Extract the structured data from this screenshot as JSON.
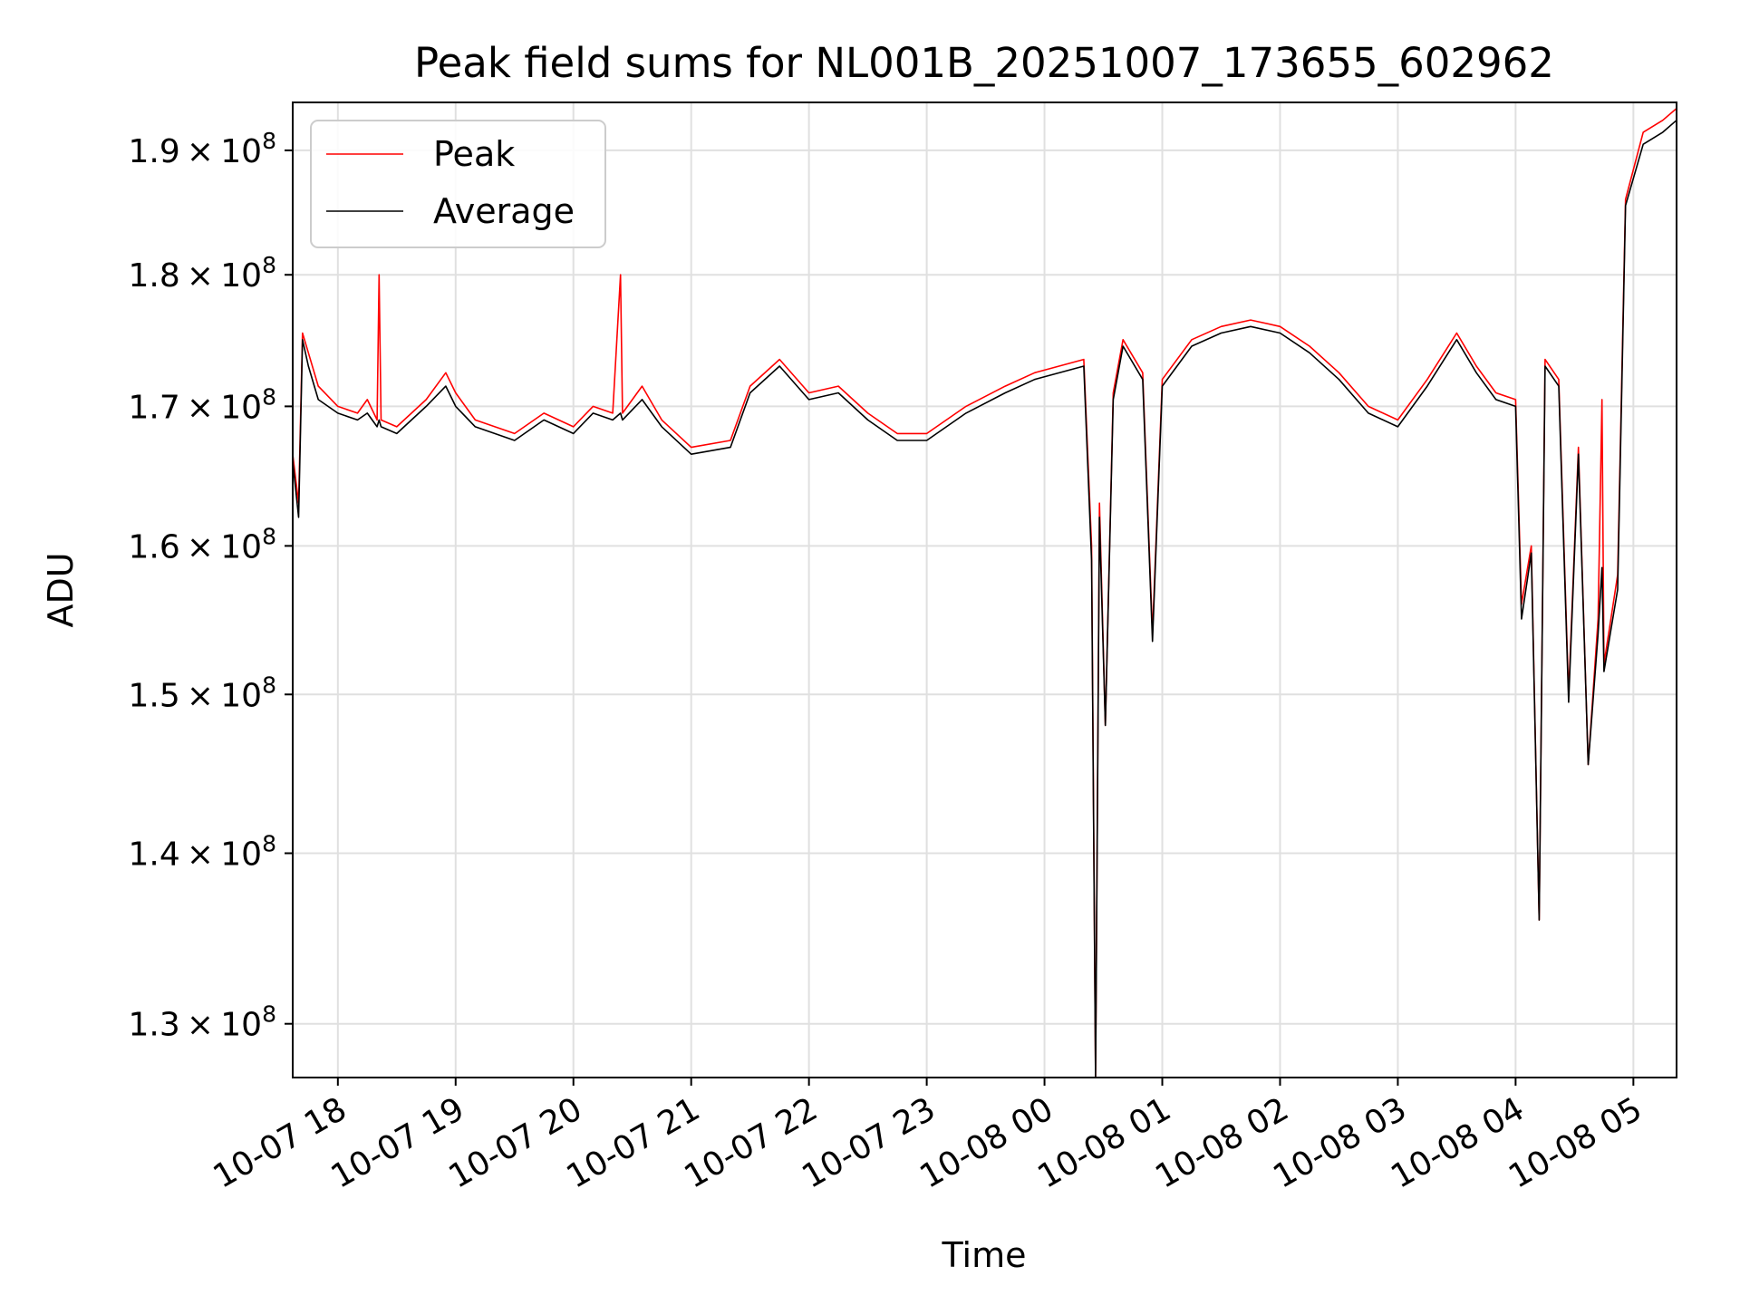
{
  "chart_data": {
    "type": "line",
    "title": "Peak field sums for NL001B_20251007_173655_602962",
    "xlabel": "Time",
    "ylabel": "ADU",
    "y_scale": "log",
    "grid": true,
    "legend_position": "upper-left",
    "xlim": [
      "2025-10-07 17:37",
      "2025-10-08 05:22"
    ],
    "ylim": [
      127000000,
      194000000
    ],
    "x_ticks": [
      {
        "t": "2025-10-07 18:00",
        "label": "10-07 18"
      },
      {
        "t": "2025-10-07 19:00",
        "label": "10-07 19"
      },
      {
        "t": "2025-10-07 20:00",
        "label": "10-07 20"
      },
      {
        "t": "2025-10-07 21:00",
        "label": "10-07 21"
      },
      {
        "t": "2025-10-07 22:00",
        "label": "10-07 22"
      },
      {
        "t": "2025-10-07 23:00",
        "label": "10-07 23"
      },
      {
        "t": "2025-10-08 00:00",
        "label": "10-08 00"
      },
      {
        "t": "2025-10-08 01:00",
        "label": "10-08 01"
      },
      {
        "t": "2025-10-08 02:00",
        "label": "10-08 02"
      },
      {
        "t": "2025-10-08 03:00",
        "label": "10-08 03"
      },
      {
        "t": "2025-10-08 04:00",
        "label": "10-08 04"
      },
      {
        "t": "2025-10-08 05:00",
        "label": "10-08 05"
      }
    ],
    "y_ticks": [
      {
        "v": 130000000,
        "mant": "1.3",
        "exp": "8"
      },
      {
        "v": 140000000,
        "mant": "1.4",
        "exp": "8"
      },
      {
        "v": 150000000,
        "mant": "1.5",
        "exp": "8"
      },
      {
        "v": 160000000,
        "mant": "1.6",
        "exp": "8"
      },
      {
        "v": 170000000,
        "mant": "1.7",
        "exp": "8"
      },
      {
        "v": 180000000,
        "mant": "1.8",
        "exp": "8"
      },
      {
        "v": 190000000,
        "mant": "1.9",
        "exp": "8"
      }
    ],
    "series": [
      {
        "name": "Peak",
        "color": "#ff0000",
        "points": [
          [
            "2025-10-07 17:37",
            166500000.0
          ],
          [
            "2025-10-07 17:40",
            163000000.0
          ],
          [
            "2025-10-07 17:42",
            175500000.0
          ],
          [
            "2025-10-07 17:45",
            174000000.0
          ],
          [
            "2025-10-07 17:50",
            171500000.0
          ],
          [
            "2025-10-07 18:00",
            170000000.0
          ],
          [
            "2025-10-07 18:10",
            169500000.0
          ],
          [
            "2025-10-07 18:15",
            170500000.0
          ],
          [
            "2025-10-07 18:20",
            169000000.0
          ],
          [
            "2025-10-07 18:21",
            180000000.0
          ],
          [
            "2025-10-07 18:22",
            169000000.0
          ],
          [
            "2025-10-07 18:30",
            168500000.0
          ],
          [
            "2025-10-07 18:45",
            170500000.0
          ],
          [
            "2025-10-07 18:55",
            172500000.0
          ],
          [
            "2025-10-07 19:00",
            171000000.0
          ],
          [
            "2025-10-07 19:10",
            169000000.0
          ],
          [
            "2025-10-07 19:30",
            168000000.0
          ],
          [
            "2025-10-07 19:45",
            169500000.0
          ],
          [
            "2025-10-07 20:00",
            168500000.0
          ],
          [
            "2025-10-07 20:10",
            170000000.0
          ],
          [
            "2025-10-07 20:20",
            169500000.0
          ],
          [
            "2025-10-07 20:24",
            180000000.0
          ],
          [
            "2025-10-07 20:25",
            169500000.0
          ],
          [
            "2025-10-07 20:35",
            171500000.0
          ],
          [
            "2025-10-07 20:45",
            169000000.0
          ],
          [
            "2025-10-07 21:00",
            167000000.0
          ],
          [
            "2025-10-07 21:20",
            167500000.0
          ],
          [
            "2025-10-07 21:30",
            171500000.0
          ],
          [
            "2025-10-07 21:45",
            173500000.0
          ],
          [
            "2025-10-07 22:00",
            171000000.0
          ],
          [
            "2025-10-07 22:15",
            171500000.0
          ],
          [
            "2025-10-07 22:30",
            169500000.0
          ],
          [
            "2025-10-07 22:45",
            168000000.0
          ],
          [
            "2025-10-07 23:00",
            168000000.0
          ],
          [
            "2025-10-07 23:20",
            170000000.0
          ],
          [
            "2025-10-07 23:40",
            171500000.0
          ],
          [
            "2025-10-07 23:55",
            172500000.0
          ],
          [
            "2025-10-08 00:20",
            173500000.0
          ],
          [
            "2025-10-08 00:24",
            160000000.0
          ],
          [
            "2025-10-08 00:26",
            127000000.0
          ],
          [
            "2025-10-08 00:28",
            163000000.0
          ],
          [
            "2025-10-08 00:31",
            148000000.0
          ],
          [
            "2025-10-08 00:35",
            171000000.0
          ],
          [
            "2025-10-08 00:40",
            175000000.0
          ],
          [
            "2025-10-08 00:50",
            172500000.0
          ],
          [
            "2025-10-08 00:55",
            154000000.0
          ],
          [
            "2025-10-08 01:00",
            172000000.0
          ],
          [
            "2025-10-08 01:15",
            175000000.0
          ],
          [
            "2025-10-08 01:30",
            176000000.0
          ],
          [
            "2025-10-08 01:45",
            176500000.0
          ],
          [
            "2025-10-08 02:00",
            176000000.0
          ],
          [
            "2025-10-08 02:15",
            174500000.0
          ],
          [
            "2025-10-08 02:30",
            172500000.0
          ],
          [
            "2025-10-08 02:45",
            170000000.0
          ],
          [
            "2025-10-08 03:00",
            169000000.0
          ],
          [
            "2025-10-08 03:15",
            172000000.0
          ],
          [
            "2025-10-08 03:30",
            175500000.0
          ],
          [
            "2025-10-08 03:40",
            173000000.0
          ],
          [
            "2025-10-08 03:50",
            171000000.0
          ],
          [
            "2025-10-08 04:00",
            170500000.0
          ],
          [
            "2025-10-08 04:03",
            156000000.0
          ],
          [
            "2025-10-08 04:08",
            160000000.0
          ],
          [
            "2025-10-08 04:12",
            136000000.0
          ],
          [
            "2025-10-08 04:15",
            173500000.0
          ],
          [
            "2025-10-08 04:22",
            172000000.0
          ],
          [
            "2025-10-08 04:27",
            150000000.0
          ],
          [
            "2025-10-08 04:32",
            167000000.0
          ],
          [
            "2025-10-08 04:37",
            145500000.0
          ],
          [
            "2025-10-08 04:42",
            155000000.0
          ],
          [
            "2025-10-08 04:44",
            170500000.0
          ],
          [
            "2025-10-08 04:45",
            152000000.0
          ],
          [
            "2025-10-08 04:52",
            158000000.0
          ],
          [
            "2025-10-08 04:56",
            186000000.0
          ],
          [
            "2025-10-08 05:05",
            191500000.0
          ],
          [
            "2025-10-08 05:15",
            192500000.0
          ],
          [
            "2025-10-08 05:22",
            193500000.0
          ]
        ]
      },
      {
        "name": "Average",
        "color": "#000000",
        "points": [
          [
            "2025-10-07 17:37",
            166000000.0
          ],
          [
            "2025-10-07 17:40",
            162000000.0
          ],
          [
            "2025-10-07 17:42",
            175000000.0
          ],
          [
            "2025-10-07 17:45",
            173000000.0
          ],
          [
            "2025-10-07 17:50",
            170500000.0
          ],
          [
            "2025-10-07 18:00",
            169500000.0
          ],
          [
            "2025-10-07 18:10",
            169000000.0
          ],
          [
            "2025-10-07 18:15",
            169500000.0
          ],
          [
            "2025-10-07 18:20",
            168500000.0
          ],
          [
            "2025-10-07 18:21",
            169000000.0
          ],
          [
            "2025-10-07 18:22",
            168500000.0
          ],
          [
            "2025-10-07 18:30",
            168000000.0
          ],
          [
            "2025-10-07 18:45",
            170000000.0
          ],
          [
            "2025-10-07 18:55",
            171500000.0
          ],
          [
            "2025-10-07 19:00",
            170000000.0
          ],
          [
            "2025-10-07 19:10",
            168500000.0
          ],
          [
            "2025-10-07 19:30",
            167500000.0
          ],
          [
            "2025-10-07 19:45",
            169000000.0
          ],
          [
            "2025-10-07 20:00",
            168000000.0
          ],
          [
            "2025-10-07 20:10",
            169500000.0
          ],
          [
            "2025-10-07 20:20",
            169000000.0
          ],
          [
            "2025-10-07 20:24",
            169500000.0
          ],
          [
            "2025-10-07 20:25",
            169000000.0
          ],
          [
            "2025-10-07 20:35",
            170500000.0
          ],
          [
            "2025-10-07 20:45",
            168500000.0
          ],
          [
            "2025-10-07 21:00",
            166500000.0
          ],
          [
            "2025-10-07 21:20",
            167000000.0
          ],
          [
            "2025-10-07 21:30",
            171000000.0
          ],
          [
            "2025-10-07 21:45",
            173000000.0
          ],
          [
            "2025-10-07 22:00",
            170500000.0
          ],
          [
            "2025-10-07 22:15",
            171000000.0
          ],
          [
            "2025-10-07 22:30",
            169000000.0
          ],
          [
            "2025-10-07 22:45",
            167500000.0
          ],
          [
            "2025-10-07 23:00",
            167500000.0
          ],
          [
            "2025-10-07 23:20",
            169500000.0
          ],
          [
            "2025-10-07 23:40",
            171000000.0
          ],
          [
            "2025-10-07 23:55",
            172000000.0
          ],
          [
            "2025-10-08 00:20",
            173000000.0
          ],
          [
            "2025-10-08 00:24",
            159000000.0
          ],
          [
            "2025-10-08 00:26",
            127000000.0
          ],
          [
            "2025-10-08 00:28",
            162000000.0
          ],
          [
            "2025-10-08 00:31",
            148000000.0
          ],
          [
            "2025-10-08 00:35",
            170500000.0
          ],
          [
            "2025-10-08 00:40",
            174500000.0
          ],
          [
            "2025-10-08 00:50",
            172000000.0
          ],
          [
            "2025-10-08 00:55",
            153500000.0
          ],
          [
            "2025-10-08 01:00",
            171500000.0
          ],
          [
            "2025-10-08 01:15",
            174500000.0
          ],
          [
            "2025-10-08 01:30",
            175500000.0
          ],
          [
            "2025-10-08 01:45",
            176000000.0
          ],
          [
            "2025-10-08 02:00",
            175500000.0
          ],
          [
            "2025-10-08 02:15",
            174000000.0
          ],
          [
            "2025-10-08 02:30",
            172000000.0
          ],
          [
            "2025-10-08 02:45",
            169500000.0
          ],
          [
            "2025-10-08 03:00",
            168500000.0
          ],
          [
            "2025-10-08 03:15",
            171500000.0
          ],
          [
            "2025-10-08 03:30",
            175000000.0
          ],
          [
            "2025-10-08 03:40",
            172500000.0
          ],
          [
            "2025-10-08 03:50",
            170500000.0
          ],
          [
            "2025-10-08 04:00",
            170000000.0
          ],
          [
            "2025-10-08 04:03",
            155000000.0
          ],
          [
            "2025-10-08 04:08",
            159500000.0
          ],
          [
            "2025-10-08 04:12",
            136000000.0
          ],
          [
            "2025-10-08 04:15",
            173000000.0
          ],
          [
            "2025-10-08 04:22",
            171500000.0
          ],
          [
            "2025-10-08 04:27",
            149500000.0
          ],
          [
            "2025-10-08 04:32",
            166500000.0
          ],
          [
            "2025-10-08 04:37",
            145500000.0
          ],
          [
            "2025-10-08 04:42",
            154000000.0
          ],
          [
            "2025-10-08 04:44",
            158500000.0
          ],
          [
            "2025-10-08 04:45",
            151500000.0
          ],
          [
            "2025-10-08 04:52",
            157000000.0
          ],
          [
            "2025-10-08 04:56",
            185500000.0
          ],
          [
            "2025-10-08 05:05",
            190500000.0
          ],
          [
            "2025-10-08 05:15",
            191500000.0
          ],
          [
            "2025-10-08 05:22",
            192500000.0
          ]
        ]
      }
    ]
  }
}
